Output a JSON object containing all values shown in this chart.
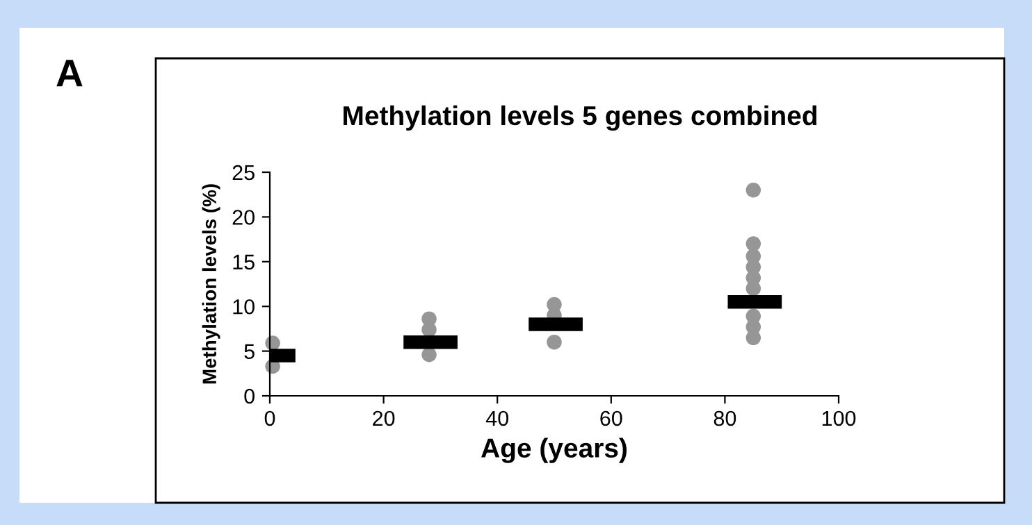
{
  "chart_data": {
    "type": "scatter",
    "title": "Methylation levels 5 genes combined",
    "xlabel": "Age (years)",
    "ylabel": "Methylation levels (%)",
    "annotations": [
      "A"
    ],
    "series": [
      {
        "color": "#969696",
        "marker": "circle",
        "x": [
          0.5,
          0.5,
          28,
          28,
          28,
          50,
          50,
          50,
          85,
          85,
          85,
          85,
          85,
          85,
          85,
          85,
          85
        ],
        "values": [
          3.3,
          5.9,
          4.6,
          7.4,
          8.6,
          6.0,
          9.0,
          10.2,
          6.5,
          7.7,
          8.9,
          12.0,
          13.2,
          14.4,
          15.6,
          17,
          23
        ]
      },
      {
        "type": "line",
        "color": "#000000",
        "marker": "none",
        "x": [
          0,
          4.5
        ],
        "values": [
          4.5,
          4.5
        ]
      },
      {
        "type": "line",
        "color": "#000000",
        "marker": "none",
        "x": [
          23.5,
          33
        ],
        "values": [
          6,
          6
        ]
      },
      {
        "type": "line",
        "color": "#000000",
        "marker": "none",
        "x": [
          45.5,
          55
        ],
        "values": [
          8,
          8
        ]
      },
      {
        "type": "line",
        "color": "#000000",
        "marker": "none",
        "x": [
          80.5,
          90
        ],
        "values": [
          10.5,
          10.5
        ]
      }
    ],
    "xlim": [
      0,
      100
    ],
    "xticks": [
      0,
      20,
      40,
      60,
      80,
      100
    ],
    "ylim": [
      0,
      25
    ],
    "yticks": [
      0,
      5,
      10,
      15,
      20,
      25
    ],
    "grid": false,
    "legend": false
  }
}
